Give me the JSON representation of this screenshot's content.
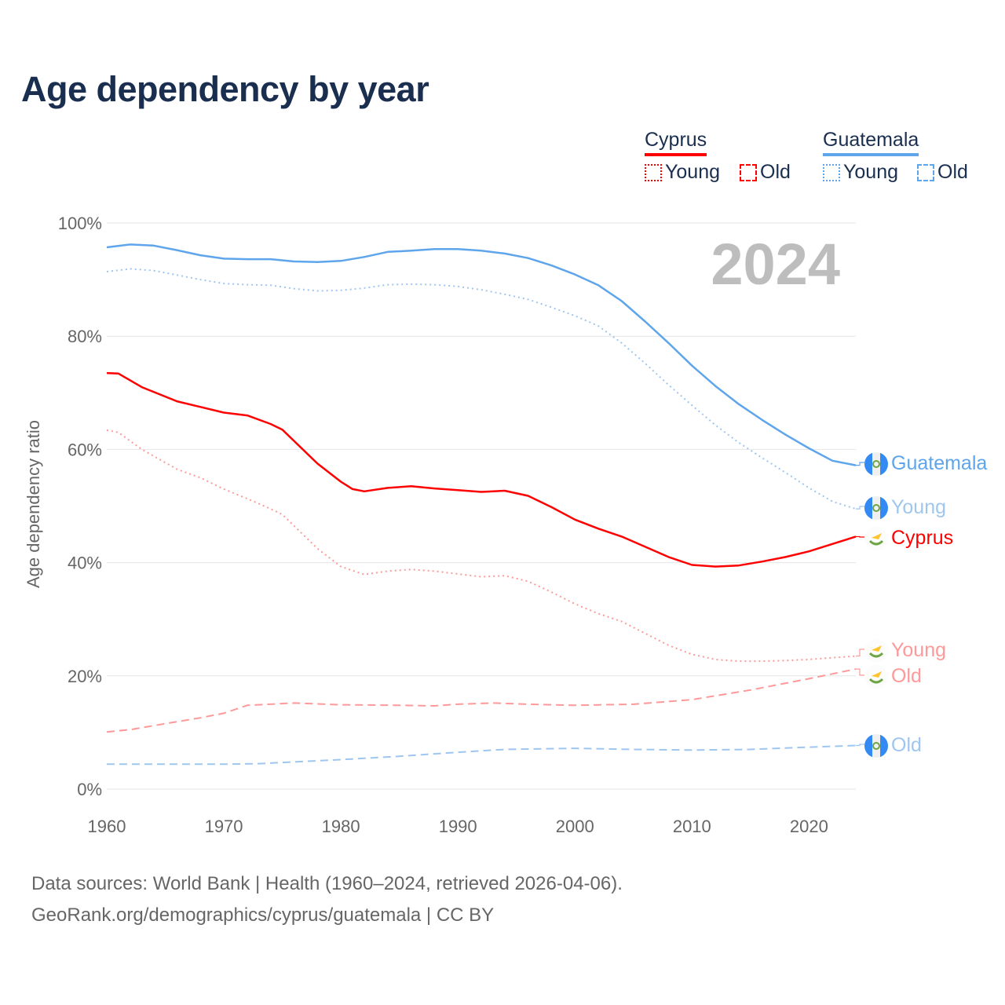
{
  "title": "Age dependency by year",
  "legend": {
    "groups": [
      {
        "country": "Cyprus",
        "color": "#ff0000",
        "items": [
          "Young",
          "Old"
        ]
      },
      {
        "country": "Guatemala",
        "color": "#5ea5eb",
        "items": [
          "Young",
          "Old"
        ]
      }
    ]
  },
  "footer": {
    "line1": "Data sources: World Bank | Health (1960–2024, retrieved 2026-04-06).",
    "line2": "GeoRank.org/demographics/cyprus/guatemala | CC BY"
  },
  "chart_data": {
    "type": "line",
    "title": "Age dependency by year",
    "ylabel": "Age dependency ratio",
    "xlabel": "",
    "year_label": "2024",
    "xlim": [
      1960,
      2024
    ],
    "ylim": [
      0,
      100
    ],
    "x_ticks": [
      "1960",
      "1970",
      "1980",
      "1990",
      "2000",
      "2010",
      "2020"
    ],
    "y_ticks": [
      "0%",
      "20%",
      "40%",
      "60%",
      "80%",
      "100%"
    ],
    "grid": true,
    "series": [
      {
        "name": "Guatemala",
        "end_label": "Guatemala",
        "country": "guatemala",
        "color": "#5ea5eb",
        "style": "solid",
        "points": [
          [
            1960,
            95.7
          ],
          [
            1962,
            96.2
          ],
          [
            1964,
            96.0
          ],
          [
            1966,
            95.2
          ],
          [
            1968,
            94.3
          ],
          [
            1970,
            93.7
          ],
          [
            1972,
            93.6
          ],
          [
            1974,
            93.6
          ],
          [
            1976,
            93.2
          ],
          [
            1978,
            93.1
          ],
          [
            1980,
            93.3
          ],
          [
            1982,
            94.0
          ],
          [
            1984,
            94.9
          ],
          [
            1986,
            95.1
          ],
          [
            1988,
            95.4
          ],
          [
            1990,
            95.4
          ],
          [
            1992,
            95.1
          ],
          [
            1994,
            94.6
          ],
          [
            1996,
            93.8
          ],
          [
            1998,
            92.5
          ],
          [
            2000,
            90.9
          ],
          [
            2002,
            89.0
          ],
          [
            2004,
            86.2
          ],
          [
            2006,
            82.6
          ],
          [
            2008,
            78.8
          ],
          [
            2010,
            74.8
          ],
          [
            2012,
            71.2
          ],
          [
            2014,
            68.0
          ],
          [
            2016,
            65.2
          ],
          [
            2018,
            62.6
          ],
          [
            2020,
            60.2
          ],
          [
            2022,
            58.0
          ],
          [
            2024,
            57.2
          ]
        ]
      },
      {
        "name": "Guatemala Young",
        "end_label": "Young",
        "country": "guatemala",
        "color": "#9fc6ef",
        "style": "dotted",
        "points": [
          [
            1960,
            91.4
          ],
          [
            1962,
            91.9
          ],
          [
            1964,
            91.6
          ],
          [
            1966,
            90.8
          ],
          [
            1968,
            90.0
          ],
          [
            1970,
            89.3
          ],
          [
            1972,
            89.1
          ],
          [
            1974,
            89.0
          ],
          [
            1976,
            88.4
          ],
          [
            1978,
            88.0
          ],
          [
            1980,
            88.1
          ],
          [
            1982,
            88.5
          ],
          [
            1984,
            89.1
          ],
          [
            1986,
            89.2
          ],
          [
            1988,
            89.1
          ],
          [
            1990,
            88.8
          ],
          [
            1992,
            88.2
          ],
          [
            1994,
            87.4
          ],
          [
            1996,
            86.5
          ],
          [
            1998,
            85.1
          ],
          [
            2000,
            83.6
          ],
          [
            2002,
            81.8
          ],
          [
            2004,
            78.8
          ],
          [
            2006,
            75.2
          ],
          [
            2008,
            71.4
          ],
          [
            2010,
            67.8
          ],
          [
            2012,
            64.3
          ],
          [
            2014,
            61.2
          ],
          [
            2016,
            58.5
          ],
          [
            2018,
            55.9
          ],
          [
            2020,
            53.2
          ],
          [
            2022,
            50.8
          ],
          [
            2024,
            49.5
          ]
        ]
      },
      {
        "name": "Cyprus",
        "end_label": "Cyprus",
        "country": "cyprus",
        "color": "#ff0000",
        "style": "solid",
        "points": [
          [
            1960,
            73.5
          ],
          [
            1961,
            73.4
          ],
          [
            1963,
            71.0
          ],
          [
            1966,
            68.5
          ],
          [
            1968,
            67.5
          ],
          [
            1970,
            66.5
          ],
          [
            1972,
            66.0
          ],
          [
            1974,
            64.5
          ],
          [
            1975,
            63.5
          ],
          [
            1976,
            61.5
          ],
          [
            1978,
            57.5
          ],
          [
            1980,
            54.3
          ],
          [
            1981,
            53.0
          ],
          [
            1982,
            52.6
          ],
          [
            1984,
            53.2
          ],
          [
            1986,
            53.5
          ],
          [
            1988,
            53.1
          ],
          [
            1990,
            52.8
          ],
          [
            1992,
            52.5
          ],
          [
            1994,
            52.7
          ],
          [
            1996,
            51.8
          ],
          [
            1998,
            49.8
          ],
          [
            2000,
            47.6
          ],
          [
            2002,
            46.0
          ],
          [
            2004,
            44.6
          ],
          [
            2006,
            42.8
          ],
          [
            2008,
            41.0
          ],
          [
            2010,
            39.6
          ],
          [
            2012,
            39.3
          ],
          [
            2014,
            39.5
          ],
          [
            2016,
            40.2
          ],
          [
            2018,
            41.0
          ],
          [
            2020,
            42.0
          ],
          [
            2022,
            43.3
          ],
          [
            2024,
            44.6
          ]
        ]
      },
      {
        "name": "Cyprus Young",
        "end_label": "Young",
        "country": "cyprus",
        "color": "#ff9999",
        "style": "dotted",
        "points": [
          [
            1960,
            63.4
          ],
          [
            1961,
            63.0
          ],
          [
            1963,
            60.0
          ],
          [
            1966,
            56.5
          ],
          [
            1968,
            55.0
          ],
          [
            1970,
            53.0
          ],
          [
            1972,
            51.3
          ],
          [
            1974,
            49.5
          ],
          [
            1975,
            48.5
          ],
          [
            1976,
            46.5
          ],
          [
            1978,
            42.5
          ],
          [
            1980,
            39.3
          ],
          [
            1982,
            37.9
          ],
          [
            1984,
            38.5
          ],
          [
            1986,
            38.8
          ],
          [
            1988,
            38.5
          ],
          [
            1990,
            38.0
          ],
          [
            1992,
            37.5
          ],
          [
            1994,
            37.7
          ],
          [
            1996,
            36.7
          ],
          [
            1998,
            34.8
          ],
          [
            2000,
            32.7
          ],
          [
            2002,
            31.0
          ],
          [
            2004,
            29.6
          ],
          [
            2006,
            27.5
          ],
          [
            2008,
            25.4
          ],
          [
            2010,
            23.8
          ],
          [
            2012,
            22.9
          ],
          [
            2014,
            22.6
          ],
          [
            2016,
            22.6
          ],
          [
            2018,
            22.7
          ],
          [
            2020,
            22.9
          ],
          [
            2022,
            23.2
          ],
          [
            2024,
            23.5
          ]
        ]
      },
      {
        "name": "Cyprus Old",
        "end_label": "Old",
        "country": "cyprus",
        "color": "#ff9999",
        "style": "dashed",
        "points": [
          [
            1960,
            10.1
          ],
          [
            1962,
            10.5
          ],
          [
            1964,
            11.2
          ],
          [
            1966,
            11.9
          ],
          [
            1968,
            12.6
          ],
          [
            1970,
            13.4
          ],
          [
            1972,
            14.8
          ],
          [
            1976,
            15.2
          ],
          [
            1980,
            14.9
          ],
          [
            1985,
            14.8
          ],
          [
            1988,
            14.7
          ],
          [
            1990,
            15.0
          ],
          [
            1993,
            15.2
          ],
          [
            1996,
            15.0
          ],
          [
            2000,
            14.8
          ],
          [
            2005,
            15.0
          ],
          [
            2010,
            15.8
          ],
          [
            2015,
            17.5
          ],
          [
            2020,
            19.5
          ],
          [
            2024,
            21.2
          ]
        ]
      },
      {
        "name": "Guatemala Old",
        "end_label": "Old",
        "country": "guatemala",
        "color": "#9fc6ef",
        "style": "dashed",
        "points": [
          [
            1960,
            4.4
          ],
          [
            1965,
            4.4
          ],
          [
            1970,
            4.4
          ],
          [
            1973,
            4.5
          ],
          [
            1976,
            4.8
          ],
          [
            1980,
            5.2
          ],
          [
            1985,
            5.8
          ],
          [
            1990,
            6.5
          ],
          [
            1994,
            7.0
          ],
          [
            2000,
            7.2
          ],
          [
            2005,
            7.0
          ],
          [
            2010,
            6.9
          ],
          [
            2015,
            7.0
          ],
          [
            2020,
            7.4
          ],
          [
            2024,
            7.7
          ]
        ]
      }
    ]
  }
}
